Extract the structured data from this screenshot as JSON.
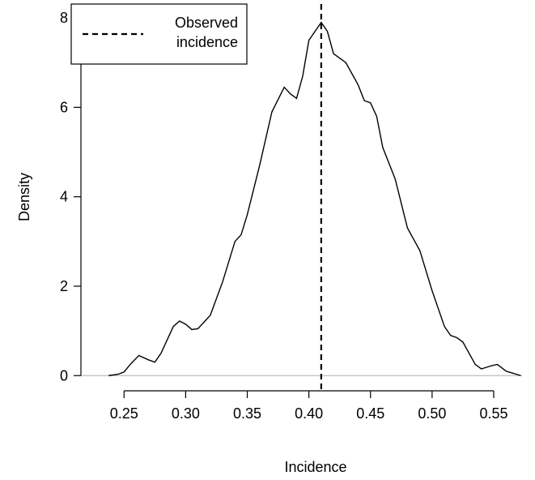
{
  "chart_data": {
    "type": "line",
    "xlabel": "Incidence",
    "ylabel": "Density",
    "x": [
      0.2375,
      0.245,
      0.25,
      0.255,
      0.262,
      0.27,
      0.275,
      0.28,
      0.29,
      0.295,
      0.3,
      0.305,
      0.31,
      0.32,
      0.33,
      0.34,
      0.345,
      0.35,
      0.36,
      0.37,
      0.38,
      0.385,
      0.39,
      0.395,
      0.4,
      0.41,
      0.415,
      0.42,
      0.43,
      0.44,
      0.445,
      0.45,
      0.455,
      0.46,
      0.47,
      0.48,
      0.485,
      0.49,
      0.5,
      0.51,
      0.515,
      0.52,
      0.525,
      0.53,
      0.535,
      0.54,
      0.548,
      0.553,
      0.56,
      0.572
    ],
    "series": [
      {
        "name": "Density",
        "color": "#000000",
        "values": [
          0,
          0.03,
          0.08,
          0.25,
          0.45,
          0.35,
          0.3,
          0.5,
          1.1,
          1.22,
          1.15,
          1.03,
          1.05,
          1.35,
          2.1,
          3.0,
          3.15,
          3.6,
          4.7,
          5.9,
          6.45,
          6.3,
          6.2,
          6.7,
          7.5,
          7.9,
          7.7,
          7.2,
          7.0,
          6.5,
          6.15,
          6.1,
          5.8,
          5.1,
          4.4,
          3.3,
          3.05,
          2.8,
          1.9,
          1.1,
          0.9,
          0.85,
          0.75,
          0.5,
          0.25,
          0.15,
          0.22,
          0.25,
          0.1,
          0
        ]
      }
    ],
    "observed": {
      "name": "Observed incidence",
      "value": 0.41,
      "color": "#000000"
    },
    "baseline": {
      "value": 0,
      "color": "#bebebe"
    },
    "legend": "top-left",
    "xlim": [
      0.215,
      0.573
    ],
    "ylim": [
      -0.34,
      8.31
    ],
    "xticks": [
      {
        "value": 0.25,
        "label": "0.25"
      },
      {
        "value": 0.3,
        "label": "0.30"
      },
      {
        "value": 0.35,
        "label": "0.35"
      },
      {
        "value": 0.4,
        "label": "0.40"
      },
      {
        "value": 0.45,
        "label": "0.45"
      },
      {
        "value": 0.5,
        "label": "0.50"
      },
      {
        "value": 0.55,
        "label": "0.55"
      }
    ],
    "yticks": [
      0,
      2,
      4,
      6,
      8
    ]
  }
}
